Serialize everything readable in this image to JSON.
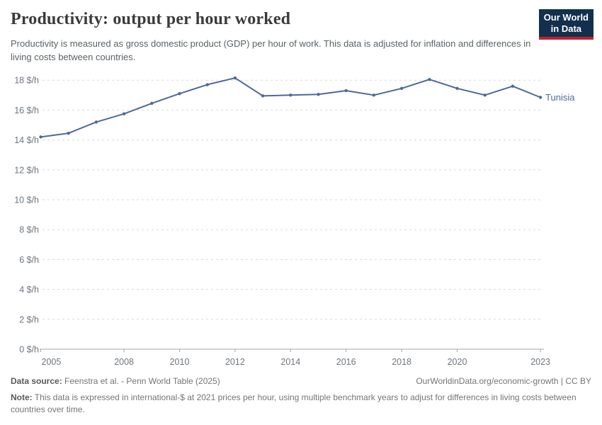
{
  "header": {
    "title": "Productivity: output per hour worked",
    "subtitle": "Productivity is measured as gross domestic product (GDP) per hour of work. This data is adjusted for inflation and differences in living costs between countries.",
    "logo_line1": "Our World",
    "logo_line2": "in Data"
  },
  "footer": {
    "data_source_label": "Data source:",
    "data_source_value": " Feenstra et al. - Penn World Table (2025)",
    "link": "OurWorldinData.org/economic-growth | CC BY",
    "note_label": "Note:",
    "note_value": " This data is expressed in international-$ at 2021 prices per hour, using multiple benchmark years to adjust for differences in living costs between countries over time."
  },
  "colors": {
    "line": "#4C6A9C",
    "gridline": "#dadada",
    "axis": "#a5a5a5",
    "tick_label": "#6f767f",
    "logo_bg": "#12304d",
    "logo_accent": "#c0232c"
  },
  "chart_data": {
    "type": "line",
    "title": "Productivity: output per hour worked",
    "xlabel": "",
    "ylabel": "",
    "ylim": [
      0,
      18
    ],
    "grid": "horizontal-dashed",
    "legend_position": "end-of-line-label",
    "ytick_suffix": " $/h",
    "yticks": [
      0,
      2,
      4,
      6,
      8,
      10,
      12,
      14,
      16,
      18
    ],
    "xticks": [
      2005,
      2008,
      2010,
      2012,
      2014,
      2016,
      2018,
      2020,
      2023
    ],
    "x": [
      2005,
      2006,
      2007,
      2008,
      2009,
      2010,
      2011,
      2012,
      2013,
      2014,
      2015,
      2016,
      2017,
      2018,
      2019,
      2020,
      2021,
      2022,
      2023
    ],
    "series": [
      {
        "name": "Tunisia",
        "color": "#4C6A9C",
        "values": [
          14.2,
          14.45,
          15.2,
          15.75,
          16.45,
          17.1,
          17.7,
          18.15,
          16.95,
          17.0,
          17.05,
          17.3,
          17.0,
          17.45,
          18.05,
          17.45,
          17.0,
          17.6,
          16.85
        ]
      }
    ]
  }
}
